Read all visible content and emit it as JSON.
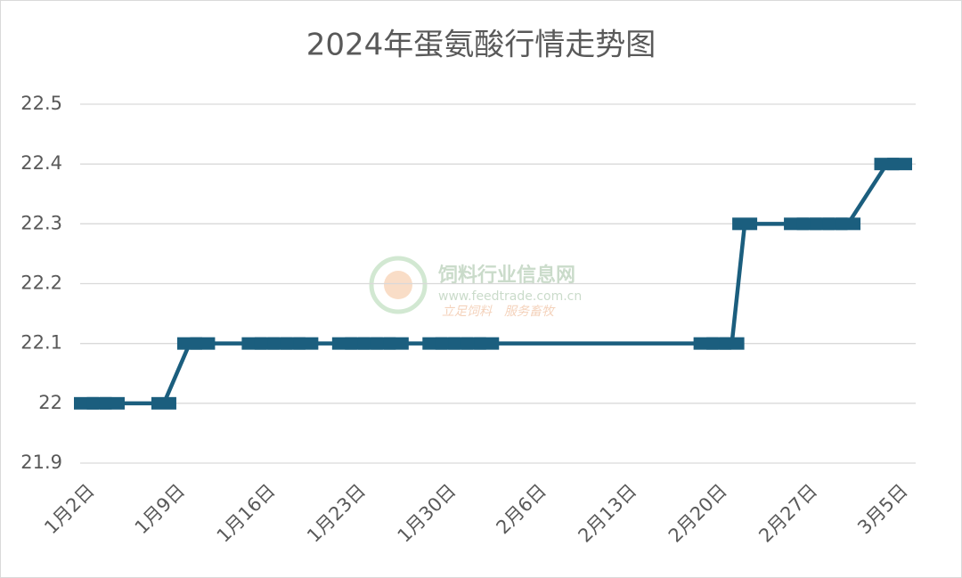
{
  "chart_data": {
    "type": "line",
    "title": "2024年蛋氨酸行情走势图",
    "x": [
      "1月2日",
      "1月3日",
      "1月4日",
      "1月8日",
      "1月10日",
      "1月11日",
      "1月15日",
      "1月16日",
      "1月17日",
      "1月18日",
      "1月19日",
      "1月22日",
      "1月23日",
      "1月24日",
      "1月25日",
      "1月26日",
      "1月29日",
      "1月30日",
      "1月31日",
      "2月1日",
      "2月2日",
      "2月19日",
      "2月20日",
      "2月21日",
      "2月22日",
      "2月26日",
      "2月27日",
      "2月28日",
      "2月29日",
      "3月1日",
      "3月4日",
      "3月5日"
    ],
    "series": [
      {
        "name": "蛋氨酸",
        "color": "#1b5e7e",
        "values": [
          22.0,
          22.0,
          22.0,
          22.0,
          22.1,
          22.1,
          22.1,
          22.1,
          22.1,
          22.1,
          22.1,
          22.1,
          22.1,
          22.1,
          22.1,
          22.1,
          22.1,
          22.1,
          22.1,
          22.1,
          22.1,
          22.1,
          22.1,
          22.1,
          22.3,
          22.3,
          22.3,
          22.3,
          22.3,
          22.3,
          22.4,
          22.4
        ]
      }
    ],
    "xlim": [
      "1月2日",
      "3月5日"
    ],
    "xticks": [
      "1月2日",
      "1月9日",
      "1月16日",
      "1月23日",
      "1月30日",
      "2月6日",
      "2月13日",
      "2月20日",
      "2月27日",
      "3月5日"
    ],
    "ylim": [
      21.9,
      22.5
    ],
    "yticks": [
      21.9,
      22,
      22.1,
      22.2,
      22.3,
      22.4,
      22.5
    ],
    "grid": true,
    "watermark": {
      "name": "饲料行业信息网",
      "url": "www.feedtrade.com.cn",
      "slogan": "立足饲料　服务畜牧"
    }
  }
}
